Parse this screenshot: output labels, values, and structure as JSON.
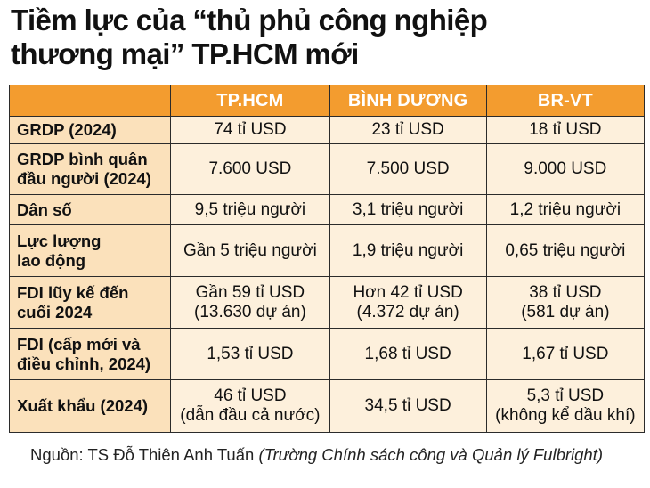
{
  "title": {
    "line1": "Tiềm lực của “thủ phủ công nghiệp",
    "line2": "thương mại” TP.HCM mới"
  },
  "table": {
    "columns": [
      "TP.HCM",
      "BÌNH DƯƠNG",
      "BR-VT"
    ],
    "rows": [
      {
        "label": [
          "GRDP (2024)"
        ],
        "values": [
          [
            "74 tỉ USD"
          ],
          [
            "23 tỉ USD"
          ],
          [
            "18 tỉ USD"
          ]
        ]
      },
      {
        "label": [
          "GRDP bình quân",
          "đầu người (2024)"
        ],
        "values": [
          [
            "7.600 USD"
          ],
          [
            "7.500 USD"
          ],
          [
            "9.000 USD"
          ]
        ]
      },
      {
        "label": [
          "Dân số"
        ],
        "values": [
          [
            "9,5 triệu người"
          ],
          [
            "3,1 triệu người"
          ],
          [
            "1,2 triệu người"
          ]
        ]
      },
      {
        "label": [
          "Lực lượng",
          "lao động"
        ],
        "values": [
          [
            "Gần 5 triệu người"
          ],
          [
            "1,9 triệu người"
          ],
          [
            "0,65 triệu người"
          ]
        ]
      },
      {
        "label": [
          "FDI lũy kế đến",
          "cuối 2024"
        ],
        "values": [
          [
            "Gần 59 tỉ USD",
            "(13.630 dự án)"
          ],
          [
            "Hơn 42 tỉ USD",
            "(4.372 dự án)"
          ],
          [
            "38 tỉ USD",
            "(581 dự án)"
          ]
        ]
      },
      {
        "label": [
          "FDI (cấp mới và",
          "điều chỉnh, 2024)"
        ],
        "values": [
          [
            "1,53 tỉ USD"
          ],
          [
            "1,68 tỉ USD"
          ],
          [
            "1,67 tỉ USD"
          ]
        ]
      },
      {
        "label": [
          "Xuất khẩu (2024)"
        ],
        "values": [
          [
            "46 tỉ USD",
            "(dẫn đầu cả nước)"
          ],
          [
            "34,5 tỉ USD"
          ],
          [
            "5,3 tỉ USD",
            "(không kể dầu khí)"
          ]
        ]
      }
    ]
  },
  "source": {
    "prefix": "Nguồn: TS Đỗ Thiên Anh Tuấn ",
    "italic": "(Trường Chính sách công và Quản lý Fulbright)"
  },
  "colors": {
    "header_bg": "#f39c2f",
    "label_bg": "#fbe1bb",
    "value_bg": "#fdf0dc",
    "border": "#2b2b2b"
  }
}
